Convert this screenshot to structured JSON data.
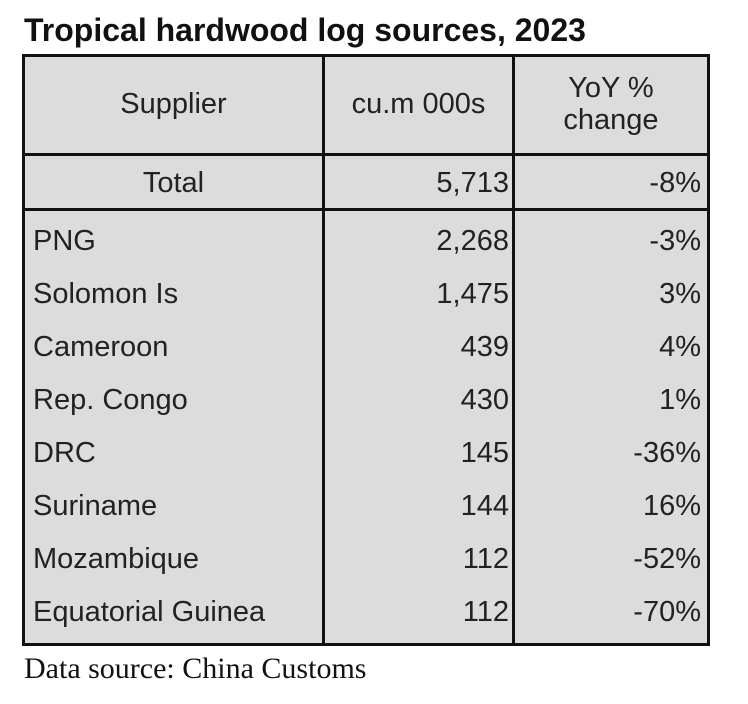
{
  "chart_data": {
    "type": "table",
    "title": "Tropical hardwood log sources, 2023",
    "columns": [
      "Supplier",
      "cu.m 000s",
      "YoY % change"
    ],
    "header_lines": {
      "yoy_line1": "YoY %",
      "yoy_line2": "change"
    },
    "total": {
      "supplier": "Total",
      "volume": "5,713",
      "change": "-8%"
    },
    "rows": [
      {
        "supplier": "PNG",
        "volume": "2,268",
        "change": "-3%"
      },
      {
        "supplier": "Solomon Is",
        "volume": "1,475",
        "change": "3%"
      },
      {
        "supplier": "Cameroon",
        "volume": "439",
        "change": "4%"
      },
      {
        "supplier": "Rep. Congo",
        "volume": "430",
        "change": "1%"
      },
      {
        "supplier": "DRC",
        "volume": "145",
        "change": "-36%"
      },
      {
        "supplier": "Suriname",
        "volume": "144",
        "change": "16%"
      },
      {
        "supplier": "Mozambique",
        "volume": "112",
        "change": "-52%"
      },
      {
        "supplier": "Equatorial Guinea",
        "volume": "112",
        "change": "-70%"
      }
    ],
    "source": "Data source: China Customs"
  }
}
